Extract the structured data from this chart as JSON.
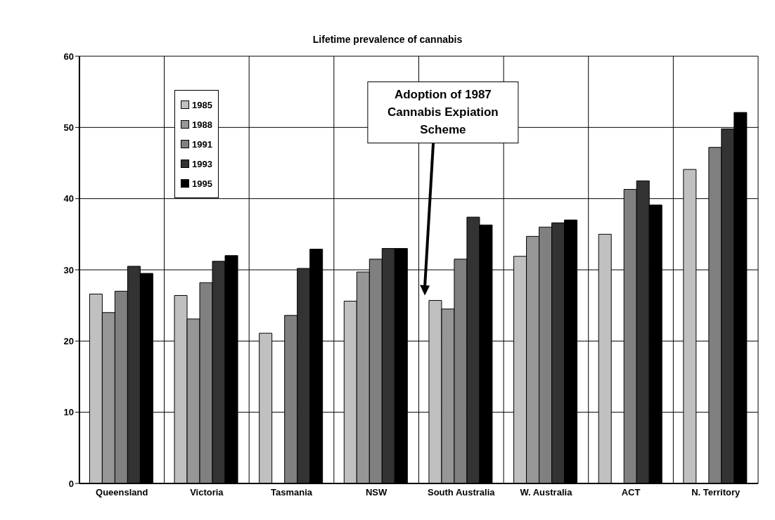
{
  "chart_data": {
    "type": "bar",
    "title": "Lifetime prevalence of cannabis",
    "categories": [
      "Queensland",
      "Victoria",
      "Tasmania",
      "NSW",
      "South Australia",
      "W. Australia",
      "ACT",
      "N. Territory"
    ],
    "series": [
      {
        "name": "1985",
        "color": "#c0c0c0",
        "values": [
          26.6,
          26.4,
          21.1,
          25.6,
          25.7,
          31.9,
          35.0,
          44.1
        ]
      },
      {
        "name": "1988",
        "color": "#969696",
        "values": [
          24.0,
          23.1,
          null,
          29.7,
          24.5,
          34.7,
          null,
          null
        ]
      },
      {
        "name": "1991",
        "color": "#808080",
        "values": [
          27.0,
          28.2,
          23.6,
          31.5,
          31.5,
          36.0,
          41.3,
          47.2
        ]
      },
      {
        "name": "1993",
        "color": "#333333",
        "values": [
          30.5,
          31.2,
          30.2,
          33.0,
          37.4,
          36.6,
          42.5,
          49.8
        ]
      },
      {
        "name": "1995",
        "color": "#000000",
        "values": [
          29.5,
          32.0,
          32.9,
          33.0,
          36.3,
          37.0,
          39.1,
          52.1
        ]
      }
    ],
    "ylim": [
      0,
      60
    ],
    "yticks": [
      0,
      10,
      20,
      30,
      40,
      50,
      60
    ],
    "grid": true,
    "legend": "top left",
    "annotations": [
      "Adoption of 1987 Cannabis Expiation Scheme"
    ]
  }
}
